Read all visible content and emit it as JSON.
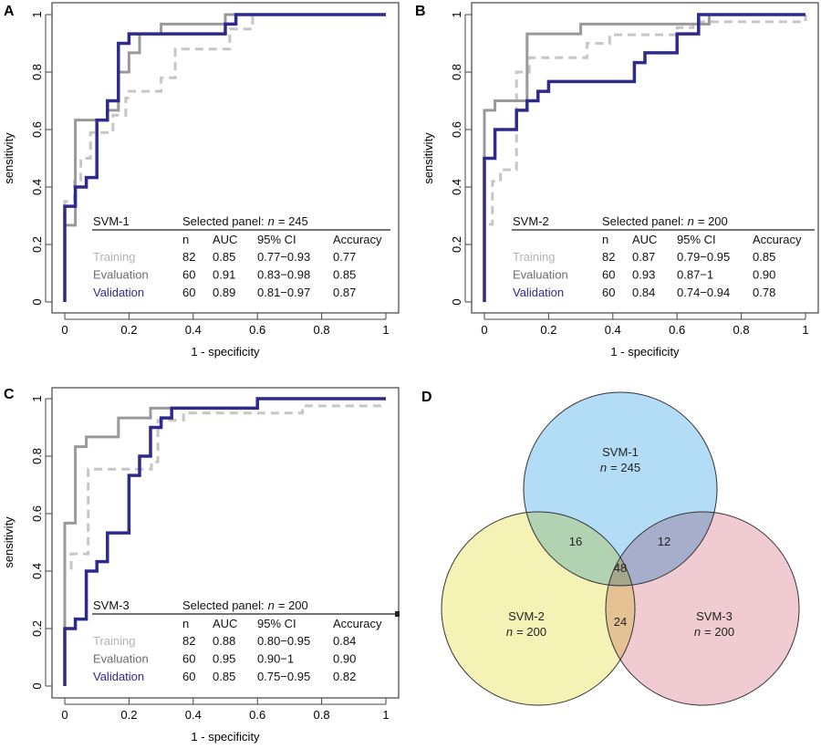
{
  "figure": {
    "panel_letters": [
      "A",
      "B",
      "C",
      "D"
    ]
  },
  "colors": {
    "training": "#c6c6c6",
    "training_label": "#b4b4b4",
    "evaluation": "#999999",
    "evaluation_label": "#6a6a6a",
    "validation": "#2e2a8c",
    "venn_svm1": "#b3dcf6",
    "venn_svm2": "#f5f2b6",
    "venn_svm3": "#f0cbd2",
    "venn_12": "#b2d3b1",
    "venn_13": "#a6aecb",
    "venn_23": "#e4c294",
    "venn_123": "#a5a78c"
  },
  "chart_data": [
    {
      "type": "line",
      "panel": "A",
      "xlabel": "1 - specificity",
      "ylabel": "sensitivity",
      "xlim": [
        0,
        1
      ],
      "ylim": [
        0,
        1
      ],
      "xticks": [
        "0",
        "0.2",
        "0.4",
        "0.6",
        "0.8",
        "1"
      ],
      "yticks": [
        "0",
        "0.2",
        "0.4",
        "0.6",
        "0.8",
        "1"
      ],
      "grid": false,
      "model": "SVM-1",
      "selected_panel_label": "Selected panel:",
      "n_symbol": "n",
      "n_value": "= 245",
      "table_headers": [
        "n",
        "AUC",
        "95% CI",
        "Accuracy"
      ],
      "table_rows": [
        {
          "name": "Training",
          "n": "82",
          "auc": "0.85",
          "ci": "0.77−0.93",
          "accuracy": "0.77"
        },
        {
          "name": "Evaluation",
          "n": "60",
          "auc": "0.91",
          "ci": "0.83−0.98",
          "accuracy": "0.85"
        },
        {
          "name": "Validation",
          "n": "60",
          "auc": "0.89",
          "ci": "0.81−0.97",
          "accuracy": "0.87"
        }
      ],
      "series": [
        {
          "name": "Training",
          "style": "dashed",
          "points": [
            [
              0,
              0
            ],
            [
              0,
              0.35
            ],
            [
              0.03,
              0.35
            ],
            [
              0.03,
              0.42
            ],
            [
              0.05,
              0.42
            ],
            [
              0.05,
              0.5
            ],
            [
              0.08,
              0.5
            ],
            [
              0.08,
              0.59
            ],
            [
              0.15,
              0.59
            ],
            [
              0.15,
              0.65
            ],
            [
              0.19,
              0.65
            ],
            [
              0.19,
              0.71
            ],
            [
              0.2,
              0.71
            ],
            [
              0.2,
              0.733
            ],
            [
              0.3,
              0.733
            ],
            [
              0.3,
              0.78
            ],
            [
              0.344,
              0.78
            ],
            [
              0.344,
              0.88
            ],
            [
              0.514,
              0.88
            ],
            [
              0.514,
              0.95
            ],
            [
              0.585,
              0.95
            ],
            [
              0.585,
              1
            ],
            [
              1,
              1
            ]
          ]
        },
        {
          "name": "Evaluation",
          "style": "solid",
          "points": [
            [
              0,
              0
            ],
            [
              0,
              0.267
            ],
            [
              0.033,
              0.267
            ],
            [
              0.033,
              0.633
            ],
            [
              0.133,
              0.633
            ],
            [
              0.133,
              0.667
            ],
            [
              0.167,
              0.667
            ],
            [
              0.167,
              0.8
            ],
            [
              0.2,
              0.8
            ],
            [
              0.2,
              0.867
            ],
            [
              0.233,
              0.867
            ],
            [
              0.233,
              0.933
            ],
            [
              0.3,
              0.933
            ],
            [
              0.3,
              0.967
            ],
            [
              0.5,
              0.967
            ],
            [
              0.5,
              1
            ],
            [
              1,
              1
            ]
          ]
        },
        {
          "name": "Validation",
          "style": "solid",
          "points": [
            [
              0,
              0
            ],
            [
              0,
              0.333
            ],
            [
              0.033,
              0.333
            ],
            [
              0.033,
              0.4
            ],
            [
              0.067,
              0.4
            ],
            [
              0.067,
              0.433
            ],
            [
              0.1,
              0.433
            ],
            [
              0.1,
              0.633
            ],
            [
              0.133,
              0.633
            ],
            [
              0.133,
              0.7
            ],
            [
              0.167,
              0.7
            ],
            [
              0.167,
              0.9
            ],
            [
              0.2,
              0.9
            ],
            [
              0.2,
              0.933
            ],
            [
              0.5,
              0.933
            ],
            [
              0.5,
              0.967
            ],
            [
              0.533,
              0.967
            ],
            [
              0.533,
              1
            ],
            [
              1,
              1
            ]
          ]
        }
      ]
    },
    {
      "type": "line",
      "panel": "B",
      "xlabel": "1 - specificity",
      "ylabel": "sensitivity",
      "xlim": [
        0,
        1
      ],
      "ylim": [
        0,
        1
      ],
      "xticks": [
        "0",
        "0.2",
        "0.4",
        "0.6",
        "0.8",
        "1"
      ],
      "yticks": [
        "0",
        "0.2",
        "0.4",
        "0.6",
        "0.8",
        "1"
      ],
      "grid": false,
      "model": "SVM-2",
      "selected_panel_label": "Selected panel:",
      "n_symbol": "n",
      "n_value": "= 200",
      "table_headers": [
        "n",
        "AUC",
        "95% CI",
        "Accuracy"
      ],
      "table_rows": [
        {
          "name": "Training",
          "n": "82",
          "auc": "0.87",
          "ci": "0.79−0.95",
          "accuracy": "0.85"
        },
        {
          "name": "Evaluation",
          "n": "60",
          "auc": "0.93",
          "ci": "0.87−1",
          "accuracy": "0.90"
        },
        {
          "name": "Validation",
          "n": "60",
          "auc": "0.84",
          "ci": "0.74−0.94",
          "accuracy": "0.78"
        }
      ],
      "series": [
        {
          "name": "Training",
          "style": "dashed",
          "points": [
            [
              0,
              0
            ],
            [
              0,
              0.27
            ],
            [
              0.025,
              0.27
            ],
            [
              0.025,
              0.42
            ],
            [
              0.05,
              0.42
            ],
            [
              0.05,
              0.46
            ],
            [
              0.1,
              0.46
            ],
            [
              0.1,
              0.8
            ],
            [
              0.14,
              0.8
            ],
            [
              0.14,
              0.85
            ],
            [
              0.32,
              0.85
            ],
            [
              0.32,
              0.9
            ],
            [
              0.39,
              0.9
            ],
            [
              0.39,
              0.93
            ],
            [
              0.6,
              0.93
            ],
            [
              0.6,
              0.955
            ],
            [
              0.65,
              0.955
            ],
            [
              0.65,
              0.975
            ],
            [
              1,
              0.975
            ],
            [
              1,
              1
            ]
          ]
        },
        {
          "name": "Evaluation",
          "style": "solid",
          "points": [
            [
              0,
              0
            ],
            [
              0,
              0.667
            ],
            [
              0.033,
              0.667
            ],
            [
              0.033,
              0.7
            ],
            [
              0.133,
              0.7
            ],
            [
              0.133,
              0.933
            ],
            [
              0.3,
              0.933
            ],
            [
              0.3,
              0.967
            ],
            [
              0.7,
              0.967
            ],
            [
              0.7,
              1
            ],
            [
              1,
              1
            ]
          ]
        },
        {
          "name": "Validation",
          "style": "solid",
          "points": [
            [
              0,
              0
            ],
            [
              0,
              0.5
            ],
            [
              0.033,
              0.5
            ],
            [
              0.033,
              0.6
            ],
            [
              0.1,
              0.6
            ],
            [
              0.1,
              0.667
            ],
            [
              0.133,
              0.667
            ],
            [
              0.133,
              0.7
            ],
            [
              0.167,
              0.7
            ],
            [
              0.167,
              0.733
            ],
            [
              0.2,
              0.733
            ],
            [
              0.2,
              0.767
            ],
            [
              0.467,
              0.767
            ],
            [
              0.467,
              0.833
            ],
            [
              0.5,
              0.833
            ],
            [
              0.5,
              0.867
            ],
            [
              0.6,
              0.867
            ],
            [
              0.6,
              0.933
            ],
            [
              0.667,
              0.933
            ],
            [
              0.667,
              1
            ],
            [
              1,
              1
            ]
          ]
        }
      ]
    },
    {
      "type": "line",
      "panel": "C",
      "xlabel": "1 - specificity",
      "ylabel": "sensitivity",
      "xlim": [
        0,
        1
      ],
      "ylim": [
        0,
        1
      ],
      "xticks": [
        "0",
        "0.2",
        "0.4",
        "0.6",
        "0.8",
        "1"
      ],
      "yticks": [
        "0",
        "0.2",
        "0.4",
        "0.6",
        "0.8",
        "1"
      ],
      "grid": false,
      "model": "SVM-3",
      "selected_panel_label": "Selected panel:",
      "n_symbol": "n",
      "n_value": "= 200",
      "table_headers": [
        "n",
        "AUC",
        "95% CI",
        "Accuracy"
      ],
      "table_rows": [
        {
          "name": "Training",
          "n": "82",
          "auc": "0.88",
          "ci": "0.80−0.95",
          "accuracy": "0.84"
        },
        {
          "name": "Evaluation",
          "n": "60",
          "auc": "0.95",
          "ci": "0.90−1",
          "accuracy": "0.90"
        },
        {
          "name": "Validation",
          "n": "60",
          "auc": "0.85",
          "ci": "0.75−0.95",
          "accuracy": "0.82"
        }
      ],
      "series": [
        {
          "name": "Training",
          "style": "dashed",
          "points": [
            [
              0,
              0
            ],
            [
              0,
              0.41
            ],
            [
              0.02,
              0.41
            ],
            [
              0.02,
              0.46
            ],
            [
              0.073,
              0.46
            ],
            [
              0.073,
              0.755
            ],
            [
              0.27,
              0.755
            ],
            [
              0.27,
              0.78
            ],
            [
              0.29,
              0.78
            ],
            [
              0.29,
              0.925
            ],
            [
              0.37,
              0.925
            ],
            [
              0.37,
              0.95
            ],
            [
              0.74,
              0.95
            ],
            [
              0.74,
              0.975
            ],
            [
              1,
              0.975
            ]
          ]
        },
        {
          "name": "Evaluation",
          "style": "solid",
          "points": [
            [
              0,
              0
            ],
            [
              0,
              0.567
            ],
            [
              0.033,
              0.567
            ],
            [
              0.033,
              0.833
            ],
            [
              0.067,
              0.833
            ],
            [
              0.067,
              0.867
            ],
            [
              0.167,
              0.867
            ],
            [
              0.167,
              0.933
            ],
            [
              0.267,
              0.933
            ],
            [
              0.267,
              0.967
            ],
            [
              0.6,
              0.967
            ],
            [
              0.6,
              1
            ],
            [
              1,
              1
            ]
          ]
        },
        {
          "name": "Validation",
          "style": "solid",
          "points": [
            [
              0,
              0
            ],
            [
              0,
              0.2
            ],
            [
              0.033,
              0.2
            ],
            [
              0.033,
              0.233
            ],
            [
              0.067,
              0.233
            ],
            [
              0.067,
              0.4
            ],
            [
              0.1,
              0.4
            ],
            [
              0.1,
              0.433
            ],
            [
              0.133,
              0.433
            ],
            [
              0.133,
              0.533
            ],
            [
              0.2,
              0.533
            ],
            [
              0.2,
              0.733
            ],
            [
              0.233,
              0.733
            ],
            [
              0.233,
              0.8
            ],
            [
              0.267,
              0.8
            ],
            [
              0.267,
              0.9
            ],
            [
              0.3,
              0.9
            ],
            [
              0.3,
              0.933
            ],
            [
              0.333,
              0.933
            ],
            [
              0.333,
              0.967
            ],
            [
              0.6,
              0.967
            ],
            [
              0.6,
              1
            ],
            [
              1,
              1
            ]
          ]
        }
      ]
    },
    {
      "type": "venn",
      "panel": "D",
      "sets": [
        {
          "name": "SVM-1",
          "n_symbol": "n",
          "n_value": "= 245"
        },
        {
          "name": "SVM-2",
          "n_symbol": "n",
          "n_value": "= 200"
        },
        {
          "name": "SVM-3",
          "n_symbol": "n",
          "n_value": "= 200"
        }
      ],
      "intersections": {
        "svm1_svm2": "16",
        "svm1_svm3": "12",
        "svm2_svm3": "24",
        "all": "48"
      }
    }
  ]
}
